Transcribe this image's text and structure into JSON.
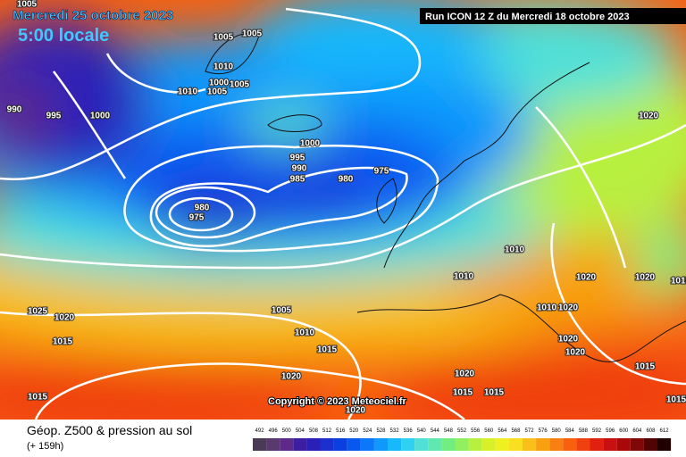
{
  "header": {
    "date": "Mercredi 25 octobre 2023",
    "time": "5:00 locale",
    "run": "Run ICON 12 Z du Mercredi 18 octobre 2023"
  },
  "copyright": "Copyright © 2023 Meteociel.fr",
  "footer": {
    "title": "Géop. Z500 & pression au sol",
    "lead": "(+ 159h)"
  },
  "isobar_labels": [
    "1005",
    "990",
    "995",
    "1000",
    "1005",
    "1005",
    "1010",
    "1005",
    "1000",
    "1005",
    "1010",
    "1000",
    "995",
    "990",
    "985",
    "980",
    "975",
    "980",
    "975",
    "1020",
    "1010",
    "1010",
    "1020",
    "1020",
    "1010",
    "1020",
    "1020",
    "1020",
    "1025",
    "1020",
    "1015",
    "1005",
    "1010",
    "1015",
    "1020",
    "1020",
    "1015",
    "1015",
    "1020",
    "1015",
    "1015",
    "1015",
    "1015"
  ],
  "legend": {
    "values": [
      492,
      496,
      500,
      504,
      508,
      512,
      516,
      520,
      524,
      528,
      532,
      536,
      540,
      544,
      548,
      552,
      556,
      560,
      564,
      568,
      572,
      576,
      580,
      584,
      588,
      592,
      596,
      600,
      604,
      608,
      612
    ],
    "colors": [
      "#4a3a55",
      "#5a3a6e",
      "#5e2a8a",
      "#3c1ea0",
      "#2a20b8",
      "#1c30d0",
      "#0a40e0",
      "#0858f0",
      "#0a78f8",
      "#1098fc",
      "#18b8fc",
      "#30d0f0",
      "#50e0d8",
      "#60e8b0",
      "#70ee80",
      "#90f060",
      "#b8f040",
      "#d8f028",
      "#f0f020",
      "#f8e020",
      "#f8c018",
      "#f8a010",
      "#f88010",
      "#f86010",
      "#f04010",
      "#e02010",
      "#c81010",
      "#a80808",
      "#800808",
      "#500404",
      "#200000"
    ]
  }
}
